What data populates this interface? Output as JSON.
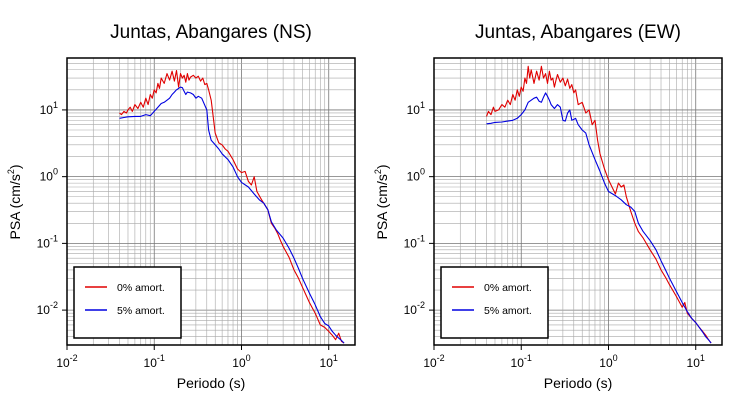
{
  "chart_data": [
    {
      "type": "line",
      "title": "Juntas, Abangares (NS)",
      "xlabel": "Periodo (s)",
      "ylabel_main": "PSA (cm/s",
      "ylabel_sup": "2",
      "ylabel_close": ")",
      "xscale": "log",
      "yscale": "log",
      "xlim": [
        0.01,
        20
      ],
      "ylim": [
        0.003,
        60
      ],
      "grid": true,
      "legend_position": "bottom-left",
      "x_ticks": [
        {
          "base": "10",
          "exp": "-2",
          "value": 0.01
        },
        {
          "base": "10",
          "exp": "-1",
          "value": 0.1
        },
        {
          "base": "10",
          "exp": "0",
          "value": 1
        },
        {
          "base": "10",
          "exp": "1",
          "value": 10
        }
      ],
      "y_ticks": [
        {
          "base": "10",
          "exp": "-2",
          "value": 0.01
        },
        {
          "base": "10",
          "exp": "-1",
          "value": 0.1
        },
        {
          "base": "10",
          "exp": "0",
          "value": 1
        },
        {
          "base": "10",
          "exp": "1",
          "value": 10
        }
      ],
      "series": [
        {
          "name": "0% amort.",
          "color": "#e00000",
          "x": [
            0.04,
            0.042,
            0.045,
            0.048,
            0.05,
            0.053,
            0.056,
            0.06,
            0.065,
            0.07,
            0.075,
            0.08,
            0.085,
            0.09,
            0.095,
            0.1,
            0.105,
            0.11,
            0.115,
            0.12,
            0.13,
            0.14,
            0.15,
            0.16,
            0.17,
            0.18,
            0.19,
            0.2,
            0.21,
            0.22,
            0.23,
            0.24,
            0.25,
            0.26,
            0.28,
            0.3,
            0.32,
            0.34,
            0.36,
            0.38,
            0.4,
            0.42,
            0.45,
            0.5,
            0.55,
            0.6,
            0.65,
            0.7,
            0.8,
            0.9,
            1.0,
            1.1,
            1.2,
            1.3,
            1.4,
            1.5,
            1.7,
            2.0,
            2.2,
            2.4,
            2.6,
            2.8,
            3.0,
            3.5,
            4.0,
            4.5,
            5.0,
            6.0,
            7.0,
            8.0,
            9.0,
            10.0,
            11.0,
            12.0,
            13.0,
            14.0,
            15.0
          ],
          "y": [
            9,
            8.5,
            9.5,
            9,
            10,
            11,
            9.5,
            12,
            10.5,
            13,
            11,
            15,
            12,
            17,
            15,
            20,
            18,
            25,
            21,
            30,
            25,
            35,
            28,
            38,
            27,
            39,
            22,
            35,
            30,
            33,
            26,
            35,
            28,
            31,
            33,
            30,
            32,
            27,
            30,
            24,
            25,
            20,
            14,
            4.5,
            3.2,
            3.0,
            2.6,
            2.4,
            1.8,
            1.3,
            1.15,
            1.2,
            0.85,
            0.75,
            1.0,
            0.6,
            0.45,
            0.32,
            0.2,
            0.17,
            0.14,
            0.11,
            0.09,
            0.062,
            0.04,
            0.03,
            0.022,
            0.013,
            0.009,
            0.006,
            0.0055,
            0.0048,
            0.0042,
            0.0036,
            0.0045,
            0.0034,
            0.0032
          ]
        },
        {
          "name": "5% amort.",
          "color": "#0000e0",
          "x": [
            0.04,
            0.045,
            0.05,
            0.06,
            0.07,
            0.08,
            0.09,
            0.1,
            0.11,
            0.12,
            0.13,
            0.14,
            0.15,
            0.16,
            0.17,
            0.18,
            0.19,
            0.2,
            0.21,
            0.22,
            0.23,
            0.24,
            0.26,
            0.28,
            0.3,
            0.32,
            0.35,
            0.4,
            0.42,
            0.45,
            0.5,
            0.55,
            0.6,
            0.7,
            0.8,
            0.9,
            1.0,
            1.2,
            1.4,
            1.6,
            1.8,
            2.0,
            2.2,
            2.5,
            3.0,
            3.5,
            4.0,
            4.5,
            5.0,
            6.0,
            7.0,
            8.0,
            9.0,
            10.0,
            11.0,
            12.0,
            13.0,
            14.0,
            15.0
          ],
          "y": [
            7.5,
            7.7,
            7.9,
            8.0,
            8.0,
            8.5,
            8.2,
            9.5,
            11,
            12.5,
            13,
            14,
            15,
            17,
            18.5,
            20,
            21,
            22,
            21.5,
            19,
            17,
            18.5,
            18,
            17,
            15,
            16,
            15,
            10,
            5,
            3.5,
            3.0,
            2.6,
            2.2,
            1.8,
            1.4,
            1.0,
            0.82,
            0.7,
            0.55,
            0.45,
            0.4,
            0.32,
            0.21,
            0.16,
            0.12,
            0.085,
            0.06,
            0.042,
            0.03,
            0.018,
            0.012,
            0.008,
            0.0063,
            0.0058,
            0.0048,
            0.0042,
            0.0038,
            0.0035,
            0.0032
          ]
        }
      ]
    },
    {
      "type": "line",
      "title": "Juntas, Abangares (EW)",
      "xlabel": "Periodo (s)",
      "ylabel_main": "PSA (cm/s",
      "ylabel_sup": "2",
      "ylabel_close": ")",
      "xscale": "log",
      "yscale": "log",
      "xlim": [
        0.01,
        20
      ],
      "ylim": [
        0.003,
        60
      ],
      "grid": true,
      "legend_position": "bottom-left",
      "x_ticks": [
        {
          "base": "10",
          "exp": "-2",
          "value": 0.01
        },
        {
          "base": "10",
          "exp": "-1",
          "value": 0.1
        },
        {
          "base": "10",
          "exp": "0",
          "value": 1
        },
        {
          "base": "10",
          "exp": "1",
          "value": 10
        }
      ],
      "y_ticks": [
        {
          "base": "10",
          "exp": "-2",
          "value": 0.01
        },
        {
          "base": "10",
          "exp": "-1",
          "value": 0.1
        },
        {
          "base": "10",
          "exp": "0",
          "value": 1
        },
        {
          "base": "10",
          "exp": "1",
          "value": 10
        }
      ],
      "series": [
        {
          "name": "0% amort.",
          "color": "#e00000",
          "x": [
            0.04,
            0.042,
            0.045,
            0.048,
            0.05,
            0.055,
            0.06,
            0.065,
            0.07,
            0.075,
            0.08,
            0.085,
            0.09,
            0.095,
            0.1,
            0.105,
            0.11,
            0.115,
            0.12,
            0.125,
            0.13,
            0.14,
            0.15,
            0.16,
            0.17,
            0.18,
            0.19,
            0.2,
            0.21,
            0.22,
            0.23,
            0.24,
            0.25,
            0.26,
            0.28,
            0.3,
            0.32,
            0.34,
            0.36,
            0.38,
            0.4,
            0.42,
            0.45,
            0.5,
            0.55,
            0.6,
            0.65,
            0.7,
            0.75,
            0.8,
            0.9,
            1.0,
            1.2,
            1.3,
            1.4,
            1.5,
            1.6,
            1.8,
            2.0,
            2.2,
            2.5,
            3.0,
            3.5,
            4.0,
            4.5,
            5.0,
            6.0,
            7.0,
            7.5,
            8.0,
            9.0,
            10.0,
            11.0,
            12.0,
            13.0,
            14.0,
            15.0
          ],
          "y": [
            8,
            9.5,
            8.5,
            11,
            9.5,
            10,
            12,
            11,
            14,
            12,
            17,
            14,
            20,
            16,
            22,
            19,
            30,
            25,
            45,
            30,
            40,
            25,
            38,
            28,
            45,
            30,
            35,
            25,
            38,
            28,
            30,
            22,
            28,
            34,
            26,
            30,
            23,
            29,
            21,
            24,
            18,
            20,
            12,
            13,
            9,
            10,
            6,
            7,
            3.5,
            2.2,
            1.3,
            0.9,
            0.55,
            0.8,
            0.7,
            0.75,
            0.5,
            0.3,
            0.2,
            0.15,
            0.12,
            0.08,
            0.058,
            0.04,
            0.031,
            0.024,
            0.016,
            0.011,
            0.013,
            0.009,
            0.0075,
            0.0065,
            0.0055,
            0.0048,
            0.0042,
            0.0036,
            0.0032
          ]
        },
        {
          "name": "5% amort.",
          "color": "#0000e0",
          "x": [
            0.04,
            0.045,
            0.05,
            0.06,
            0.07,
            0.08,
            0.09,
            0.1,
            0.11,
            0.12,
            0.13,
            0.14,
            0.15,
            0.16,
            0.17,
            0.18,
            0.19,
            0.2,
            0.21,
            0.22,
            0.24,
            0.26,
            0.28,
            0.3,
            0.32,
            0.34,
            0.36,
            0.38,
            0.4,
            0.42,
            0.45,
            0.5,
            0.55,
            0.6,
            0.7,
            0.8,
            0.9,
            1.0,
            1.2,
            1.4,
            1.6,
            1.8,
            2.0,
            2.2,
            2.5,
            3.0,
            3.5,
            4.0,
            4.5,
            5.0,
            6.0,
            7.0,
            8.0,
            9.0,
            10.0,
            11.0,
            12.0,
            13.0,
            14.0,
            15.0
          ],
          "y": [
            6.2,
            6.3,
            6.5,
            6.6,
            6.8,
            7.0,
            7.5,
            8.5,
            10,
            13,
            14,
            15,
            15.5,
            13.5,
            13,
            15.5,
            18,
            16,
            14,
            12,
            10.5,
            12,
            11,
            7,
            6.8,
            9,
            10,
            7,
            7.2,
            7.5,
            6,
            5,
            4.5,
            3.0,
            1.8,
            1.2,
            0.8,
            0.6,
            0.52,
            0.45,
            0.38,
            0.35,
            0.3,
            0.2,
            0.15,
            0.11,
            0.08,
            0.055,
            0.04,
            0.03,
            0.019,
            0.013,
            0.0095,
            0.0075,
            0.0065,
            0.0055,
            0.0047,
            0.004,
            0.0036,
            0.0032
          ]
        }
      ]
    }
  ]
}
